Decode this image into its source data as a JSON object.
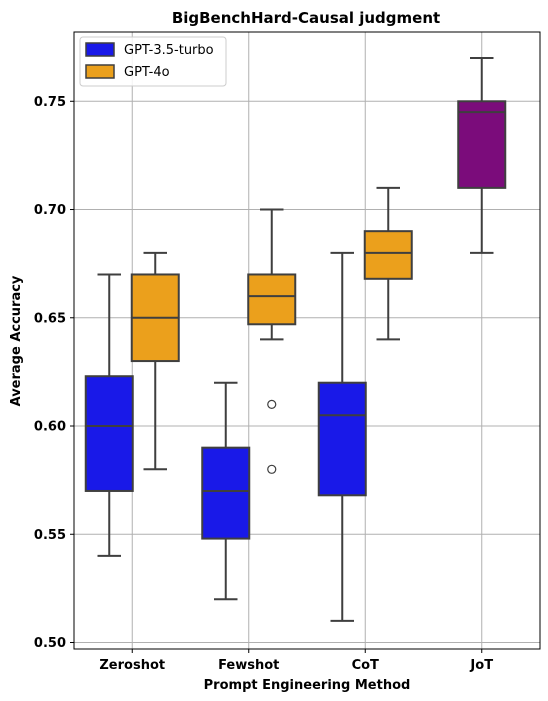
{
  "chart_data": {
    "type": "boxplot",
    "title": "BigBenchHard-Causal judgment",
    "xlabel": "Prompt Engineering Method",
    "ylabel": "Average Accuracy",
    "categories": [
      "Zeroshot",
      "Fewshot",
      "CoT",
      "JoT"
    ],
    "ylim": [
      0.497,
      0.782
    ],
    "yticks": [
      "0.50",
      "0.55",
      "0.60",
      "0.65",
      "0.70",
      "0.75"
    ],
    "grid": true,
    "legend": {
      "position": "top-left"
    },
    "series": [
      {
        "name": "GPT-3.5-turbo",
        "color": "#1919e8",
        "boxes": [
          {
            "category": "Zeroshot",
            "whisker_low": 0.54,
            "q1": 0.57,
            "median": 0.6,
            "q3": 0.623,
            "whisker_high": 0.67,
            "outliers": []
          },
          {
            "category": "Fewshot",
            "whisker_low": 0.52,
            "q1": 0.548,
            "median": 0.57,
            "q3": 0.59,
            "whisker_high": 0.62,
            "outliers": []
          },
          {
            "category": "CoT",
            "whisker_low": 0.51,
            "q1": 0.568,
            "median": 0.605,
            "q3": 0.62,
            "whisker_high": 0.68,
            "outliers": []
          }
        ]
      },
      {
        "name": "GPT-4o",
        "color": "#eba01c",
        "boxes": [
          {
            "category": "Zeroshot",
            "whisker_low": 0.58,
            "q1": 0.63,
            "median": 0.65,
            "q3": 0.67,
            "whisker_high": 0.68,
            "outliers": []
          },
          {
            "category": "Fewshot",
            "whisker_low": 0.64,
            "q1": 0.647,
            "median": 0.66,
            "q3": 0.67,
            "whisker_high": 0.7,
            "outliers": [
              0.61,
              0.58
            ]
          },
          {
            "category": "CoT",
            "whisker_low": 0.64,
            "q1": 0.668,
            "median": 0.68,
            "q3": 0.69,
            "whisker_high": 0.71,
            "outliers": []
          }
        ]
      }
    ],
    "extra_boxes": [
      {
        "category": "JoT",
        "color": "#7b0c7b",
        "whisker_low": 0.68,
        "q1": 0.71,
        "median": 0.745,
        "q3": 0.75,
        "whisker_high": 0.77,
        "outliers": []
      }
    ]
  }
}
